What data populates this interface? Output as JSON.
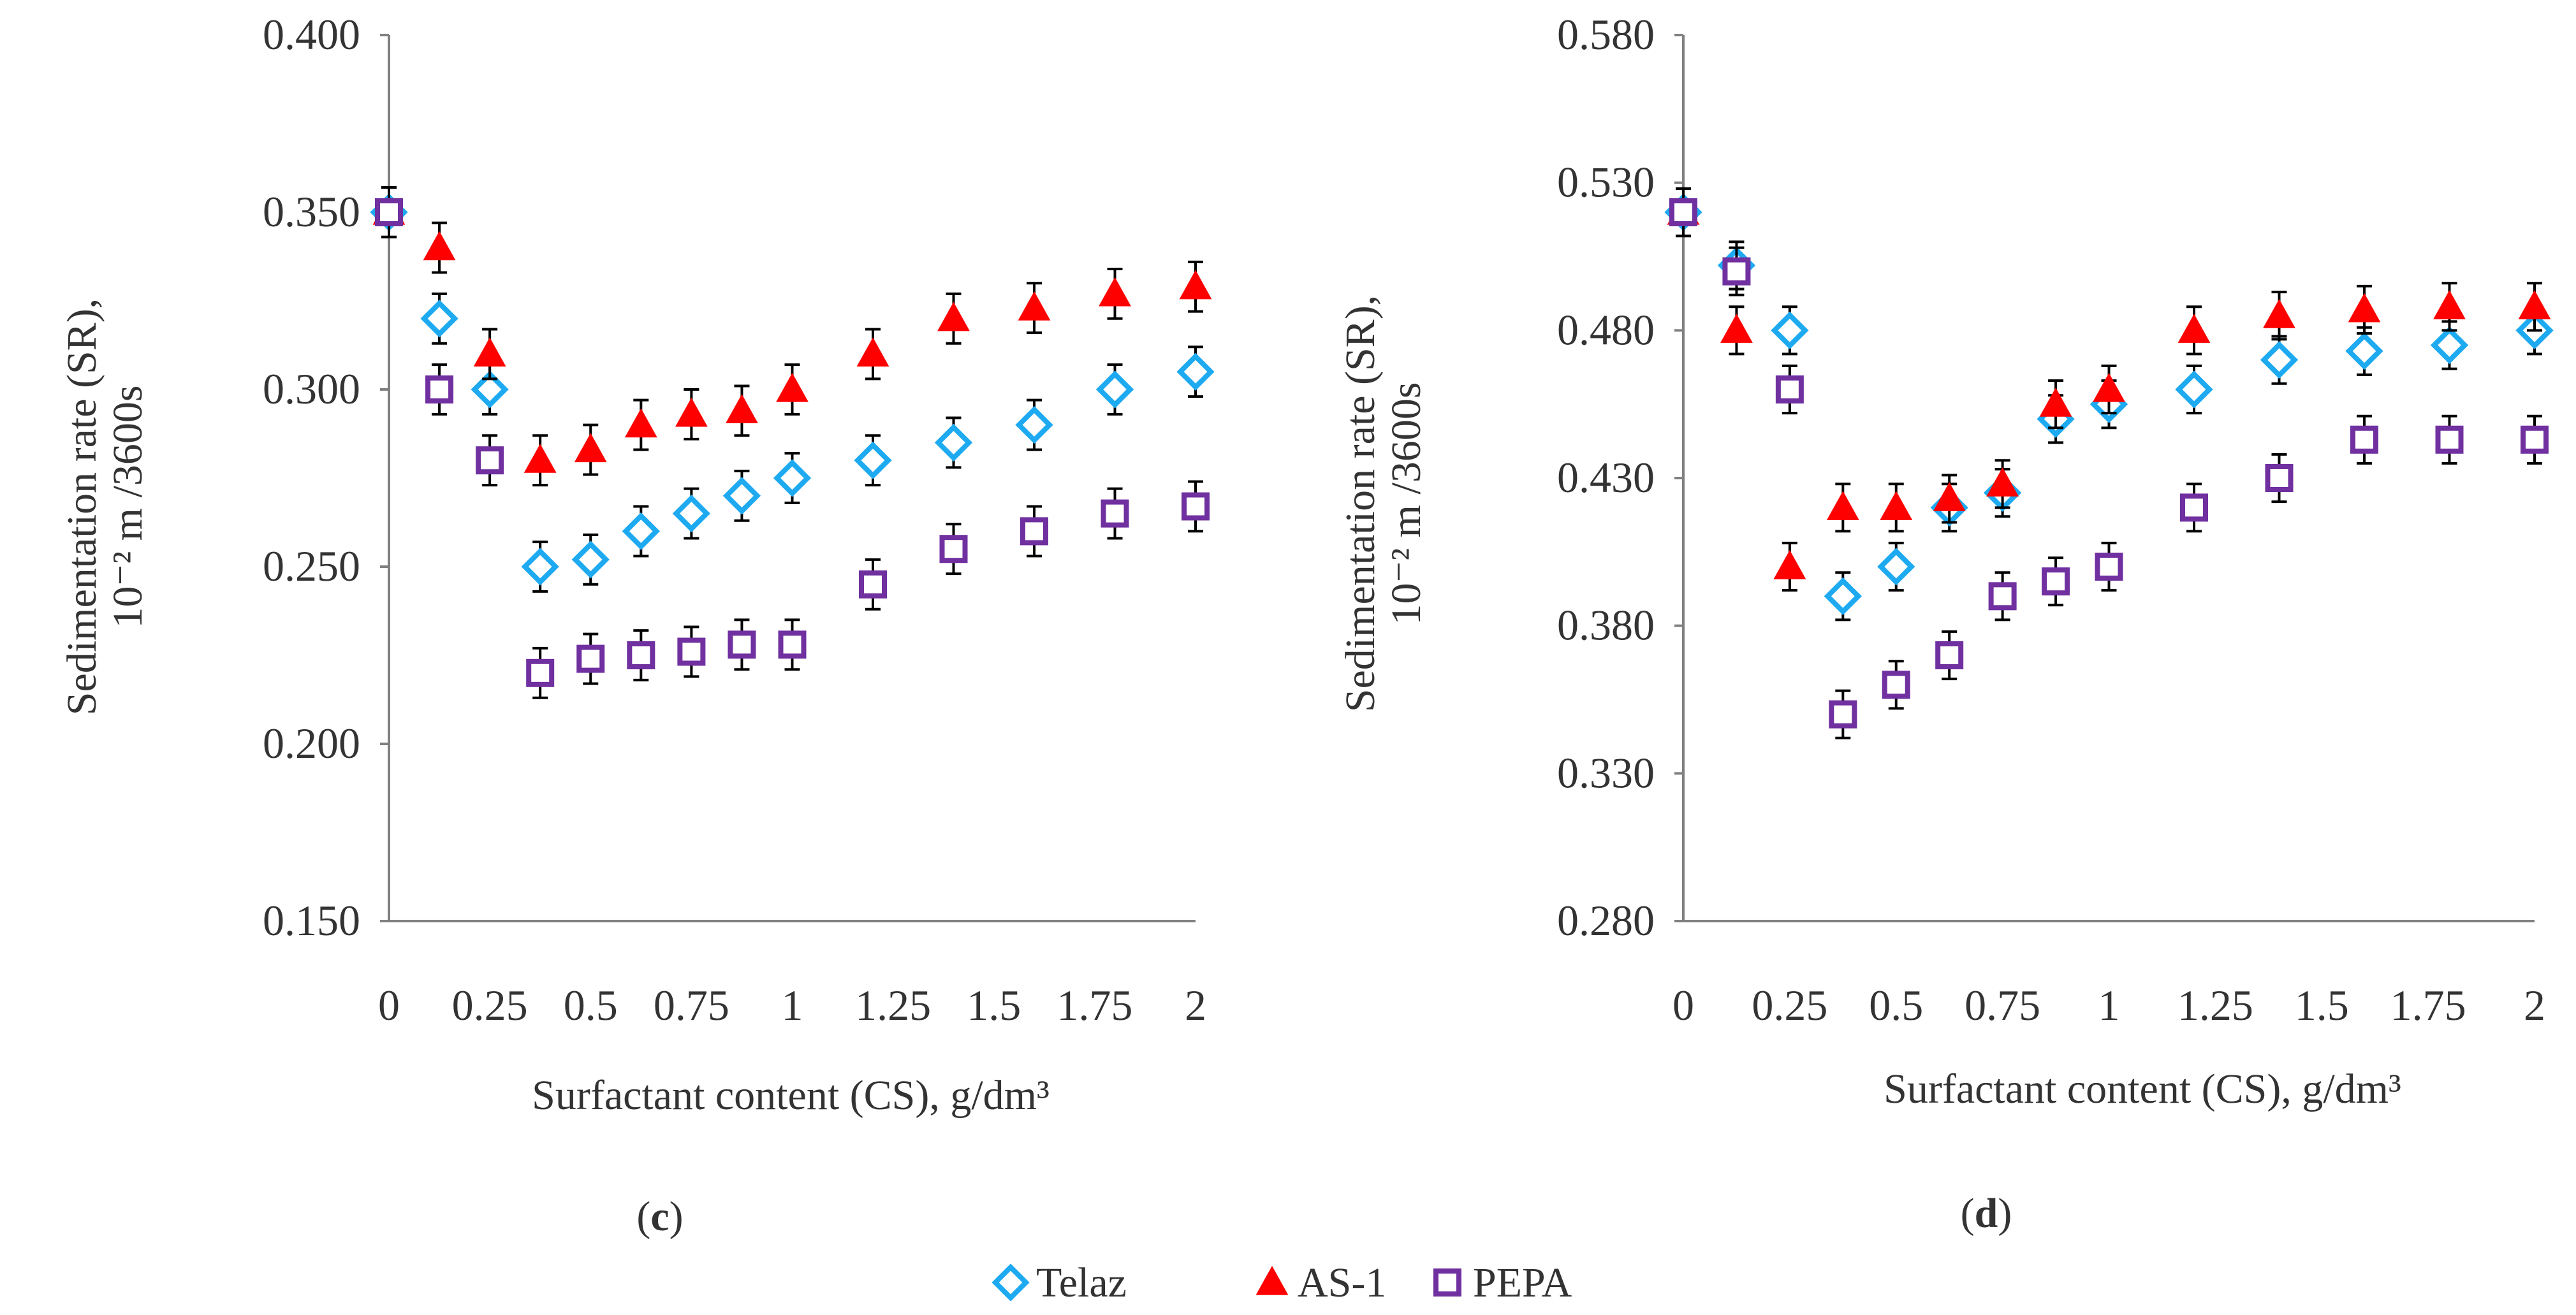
{
  "colors": {
    "telaz": "#1EAAF1",
    "as1": "#FF0000",
    "pepa": "#7030A0",
    "axis": "#808080",
    "error_bar": "#000000"
  },
  "legend": {
    "items": [
      {
        "name": "Telaz",
        "marker": "diamond-icon"
      },
      {
        "name": "AS-1",
        "marker": "triangle-icon"
      },
      {
        "name": "PEPA",
        "marker": "square-icon"
      }
    ]
  },
  "chart_data": [
    {
      "type": "scatter",
      "panel_label": "(c)",
      "panel_letter": "c",
      "xlabel": "Surfactant content (CS), g/dm³",
      "ylabel_line1": "Sedimentation rate (SR),",
      "ylabel_line2": "10⁻² m /3600s",
      "xlim": [
        0,
        2
      ],
      "ylim": [
        0.15,
        0.4
      ],
      "x_ticks": [
        0,
        0.25,
        0.5,
        0.75,
        1,
        1.25,
        1.5,
        1.75,
        2
      ],
      "x_tick_labels": [
        "0",
        "0.25",
        "0.5",
        "0.75",
        "1",
        "1.25",
        "1.5",
        "1.75",
        "2"
      ],
      "y_ticks": [
        0.15,
        0.2,
        0.25,
        0.3,
        0.35,
        0.4
      ],
      "y_tick_labels": [
        "0.150",
        "0.200",
        "0.250",
        "0.300",
        "0.350",
        "0.400"
      ],
      "error": 0.007,
      "series": [
        {
          "name": "Telaz",
          "marker": "diamond",
          "x": [
            0,
            0.125,
            0.25,
            0.375,
            0.5,
            0.625,
            0.75,
            0.875,
            1,
            1.2,
            1.4,
            1.6,
            1.8,
            2
          ],
          "y": [
            0.35,
            0.32,
            0.3,
            0.25,
            0.252,
            0.26,
            0.265,
            0.27,
            0.275,
            0.28,
            0.285,
            0.29,
            0.3,
            0.305
          ]
        },
        {
          "name": "AS-1",
          "marker": "triangle",
          "x": [
            0,
            0.125,
            0.25,
            0.375,
            0.5,
            0.625,
            0.75,
            0.875,
            1,
            1.2,
            1.4,
            1.6,
            1.8,
            2
          ],
          "y": [
            0.35,
            0.34,
            0.31,
            0.28,
            0.283,
            0.29,
            0.293,
            0.294,
            0.3,
            0.31,
            0.32,
            0.323,
            0.327,
            0.329
          ]
        },
        {
          "name": "PEPA",
          "marker": "square",
          "x": [
            0,
            0.125,
            0.25,
            0.375,
            0.5,
            0.625,
            0.75,
            0.875,
            1,
            1.2,
            1.4,
            1.6,
            1.8,
            2
          ],
          "y": [
            0.35,
            0.3,
            0.28,
            0.22,
            0.224,
            0.225,
            0.226,
            0.228,
            0.228,
            0.245,
            0.255,
            0.26,
            0.265,
            0.267
          ]
        }
      ]
    },
    {
      "type": "scatter",
      "panel_label": "(d)",
      "panel_letter": "d",
      "xlabel": "Surfactant content (CS), g/dm³",
      "ylabel_line1": "Sedimentation rate (SR),",
      "ylabel_line2": "10⁻² m /3600s",
      "xlim": [
        0,
        2
      ],
      "ylim": [
        0.28,
        0.58
      ],
      "x_ticks": [
        0,
        0.25,
        0.5,
        0.75,
        1,
        1.25,
        1.5,
        1.75,
        2
      ],
      "x_tick_labels": [
        "0",
        "0.25",
        "0.5",
        "0.75",
        "1",
        "1.25",
        "1.5",
        "1.75",
        "2"
      ],
      "y_ticks": [
        0.28,
        0.33,
        0.38,
        0.43,
        0.48,
        0.53,
        0.58
      ],
      "y_tick_labels": [
        "0.280",
        "0.330",
        "0.380",
        "0.430",
        "0.480",
        "0.530",
        "0.580"
      ],
      "error": 0.008,
      "series": [
        {
          "name": "Telaz",
          "marker": "diamond",
          "x": [
            0,
            0.125,
            0.25,
            0.375,
            0.5,
            0.625,
            0.75,
            0.875,
            1,
            1.2,
            1.4,
            1.6,
            1.8,
            2
          ],
          "y": [
            0.52,
            0.502,
            0.48,
            0.39,
            0.4,
            0.42,
            0.425,
            0.45,
            0.455,
            0.46,
            0.47,
            0.473,
            0.475,
            0.48
          ]
        },
        {
          "name": "AS-1",
          "marker": "triangle",
          "x": [
            0,
            0.125,
            0.25,
            0.375,
            0.5,
            0.625,
            0.75,
            0.875,
            1,
            1.2,
            1.4,
            1.6,
            1.8,
            2
          ],
          "y": [
            0.52,
            0.48,
            0.4,
            0.42,
            0.42,
            0.423,
            0.428,
            0.455,
            0.46,
            0.48,
            0.485,
            0.487,
            0.488,
            0.488
          ]
        },
        {
          "name": "PEPA",
          "marker": "square",
          "x": [
            0,
            0.125,
            0.25,
            0.375,
            0.5,
            0.625,
            0.75,
            0.875,
            1,
            1.2,
            1.4,
            1.6,
            1.8,
            2
          ],
          "y": [
            0.52,
            0.5,
            0.46,
            0.35,
            0.36,
            0.37,
            0.39,
            0.395,
            0.4,
            0.42,
            0.43,
            0.443,
            0.443,
            0.443
          ]
        }
      ]
    }
  ]
}
